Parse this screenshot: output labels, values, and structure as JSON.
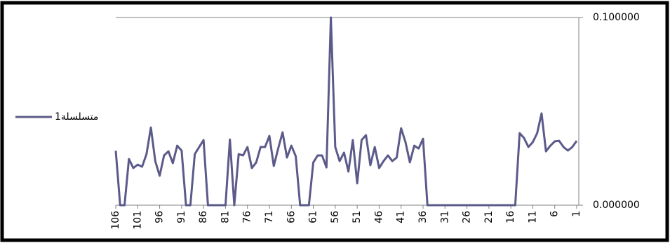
{
  "chart_data": {
    "type": "line",
    "categories": [
      "106",
      null,
      null,
      null,
      null,
      "101",
      null,
      null,
      null,
      null,
      "96",
      null,
      null,
      null,
      null,
      "91",
      null,
      null,
      null,
      null,
      "86",
      null,
      null,
      null,
      null,
      "81",
      null,
      null,
      null,
      null,
      "76",
      null,
      null,
      null,
      null,
      "71",
      null,
      null,
      null,
      null,
      "66",
      null,
      null,
      null,
      null,
      "61",
      null,
      null,
      null,
      null,
      "56",
      null,
      null,
      null,
      null,
      "51",
      null,
      null,
      null,
      null,
      "46",
      null,
      null,
      null,
      null,
      "41",
      null,
      null,
      null,
      null,
      "36",
      null,
      null,
      null,
      null,
      "31",
      null,
      null,
      null,
      null,
      "26",
      null,
      null,
      null,
      null,
      "21",
      null,
      null,
      null,
      null,
      "16",
      null,
      null,
      null,
      null,
      "11",
      null,
      null,
      null,
      null,
      "6",
      null,
      null,
      null,
      null,
      "1"
    ],
    "series": [
      {
        "name": "متسلسلة1",
        "color": "#5b5a8a",
        "values": [
          0.029,
          0,
          0,
          0.0246,
          0.0198,
          0.0216,
          0.0205,
          0.0272,
          0.0414,
          0.0235,
          0.0157,
          0.0265,
          0.0287,
          0.0224,
          0.0317,
          0.0291,
          0,
          0,
          0.0272,
          0.031,
          0.0347,
          0,
          0,
          0,
          0,
          0,
          0.035,
          0,
          0.0272,
          0.0265,
          0.031,
          0.0198,
          0.0228,
          0.031,
          0.031,
          0.0369,
          0.0209,
          0.0302,
          0.0388,
          0.0254,
          0.0317,
          0.0261,
          0,
          0,
          0,
          0.0228,
          0.0265,
          0.0265,
          0.0201,
          0.1,
          0.031,
          0.0235,
          0.028,
          0.0179,
          0.0347,
          0.0116,
          0.0347,
          0.0373,
          0.0213,
          0.031,
          0.0198,
          0.0235,
          0.0265,
          0.0235,
          0.0254,
          0.041,
          0.0336,
          0.0228,
          0.0317,
          0.0302,
          0.0354,
          0,
          0,
          0,
          0,
          0,
          0,
          0,
          0,
          0,
          0,
          0,
          0,
          0,
          0,
          0,
          0,
          0,
          0,
          0,
          0,
          0,
          0.0384,
          0.0358,
          0.031,
          0.0336,
          0.0384,
          0.0489,
          0.0287,
          0.0317,
          0.034,
          0.0343,
          0.031,
          0.0291,
          0.031,
          0.0343
        ]
      }
    ],
    "ylim": [
      0,
      0.1
    ],
    "yticks": [
      {
        "value": 0,
        "label": "0.000000"
      },
      {
        "value": 0.1,
        "label": "0.100000"
      }
    ],
    "grid": true,
    "legend": "left"
  }
}
